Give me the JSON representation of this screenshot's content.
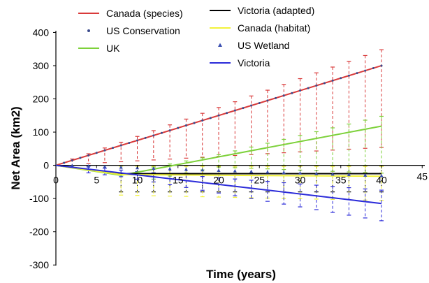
{
  "chart_data": {
    "type": "line",
    "xlabel": "Time (years)",
    "ylabel": "Net Area (km2)",
    "xlim": [
      0,
      45
    ],
    "ylim": [
      -300,
      400
    ],
    "x_ticks": [
      0,
      5,
      10,
      15,
      20,
      25,
      30,
      35,
      40,
      45
    ],
    "x_tick_labels": [
      "0",
      "5",
      "10",
      "15",
      "20",
      "25",
      "30",
      "35",
      "40",
      "45"
    ],
    "y_ticks": [
      -300,
      -200,
      -100,
      0,
      100,
      200,
      300,
      400
    ],
    "y_tick_labels": [
      "-300",
      "-200",
      "-100",
      "0",
      "100",
      "200",
      "300",
      "400"
    ],
    "legend_placement": "top",
    "series": [
      {
        "name": "Canada (species)",
        "color": "#d93a3a",
        "marker": "line",
        "x": [
          0,
          40
        ],
        "y": [
          0,
          300
        ],
        "error_every": 2,
        "error_x_from": 2,
        "error_upper_frac": 0.16,
        "error_lower_frac": 0.82
      },
      {
        "name": "US Conservation",
        "color": "#3b4a8c",
        "marker": "dots",
        "x": [
          0,
          40
        ],
        "y": [
          0,
          300
        ]
      },
      {
        "name": "UK",
        "color": "#7dd13a",
        "marker": "line",
        "x": [
          0,
          8,
          40
        ],
        "y": [
          0,
          -30,
          118
        ],
        "error_every": 2,
        "error_x_from": 12,
        "error_upper_frac": 0.25,
        "error_lower_frac": 1.2
      },
      {
        "name": "Victoria (adapted)",
        "color": "#000000",
        "marker": "line",
        "x": [
          0,
          8,
          40
        ],
        "y": [
          0,
          -25,
          -25
        ],
        "error_every": 2,
        "error_x_from": 8,
        "error_upper_frac": 1.0,
        "error_lower_frac": 2.2
      },
      {
        "name": "Canada (habitat)",
        "color": "#f2f23a",
        "marker": "line",
        "x": [
          0,
          8,
          40
        ],
        "y": [
          0,
          -28,
          -33
        ],
        "error_every": 2,
        "error_x_from": 8,
        "error_upper_frac": 0.9,
        "error_lower_frac": 2.2
      },
      {
        "name": "US Wetland",
        "color": "#3a4fb0",
        "marker": "triangles",
        "x": [
          0,
          40
        ],
        "y": [
          0,
          -32
        ]
      },
      {
        "name": "Victoria",
        "color": "#2b2bd9",
        "marker": "line",
        "x": [
          0,
          40
        ],
        "y": [
          0,
          -115
        ],
        "error_every": 2,
        "error_x_from": 4,
        "error_upper_frac": 0.35,
        "error_lower_frac": 0.45
      }
    ]
  }
}
